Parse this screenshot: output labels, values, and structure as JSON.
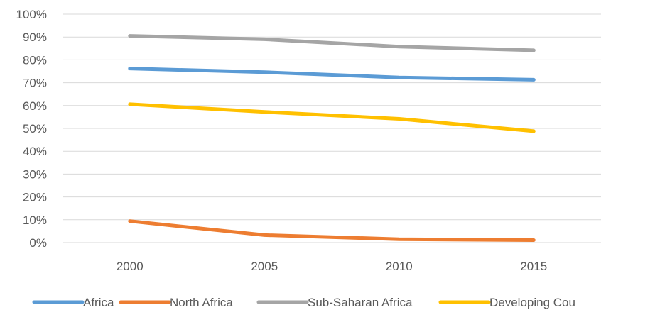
{
  "chart_data": {
    "type": "line",
    "x": [
      "2000",
      "2005",
      "2010",
      "2015"
    ],
    "yticks": [
      "0%",
      "10%",
      "20%",
      "30%",
      "40%",
      "50%",
      "60%",
      "70%",
      "80%",
      "90%",
      "100%"
    ],
    "ylim": [
      0,
      100
    ],
    "grid": true,
    "legend_position": "bottom",
    "series": [
      {
        "name": "Africa",
        "color": "#5B9BD5",
        "values": [
          76.2,
          74.6,
          72.3,
          71.3
        ]
      },
      {
        "name": "North Africa",
        "color": "#ED7D31",
        "values": [
          9.4,
          3.3,
          1.5,
          1.1
        ]
      },
      {
        "name": "Sub-Saharan Africa",
        "color": "#A5A5A5",
        "values": [
          90.5,
          89.0,
          85.8,
          84.2
        ]
      },
      {
        "name": "Developing Cou",
        "color": "#FFC000",
        "values": [
          60.6,
          57.2,
          54.2,
          48.8
        ]
      }
    ]
  }
}
